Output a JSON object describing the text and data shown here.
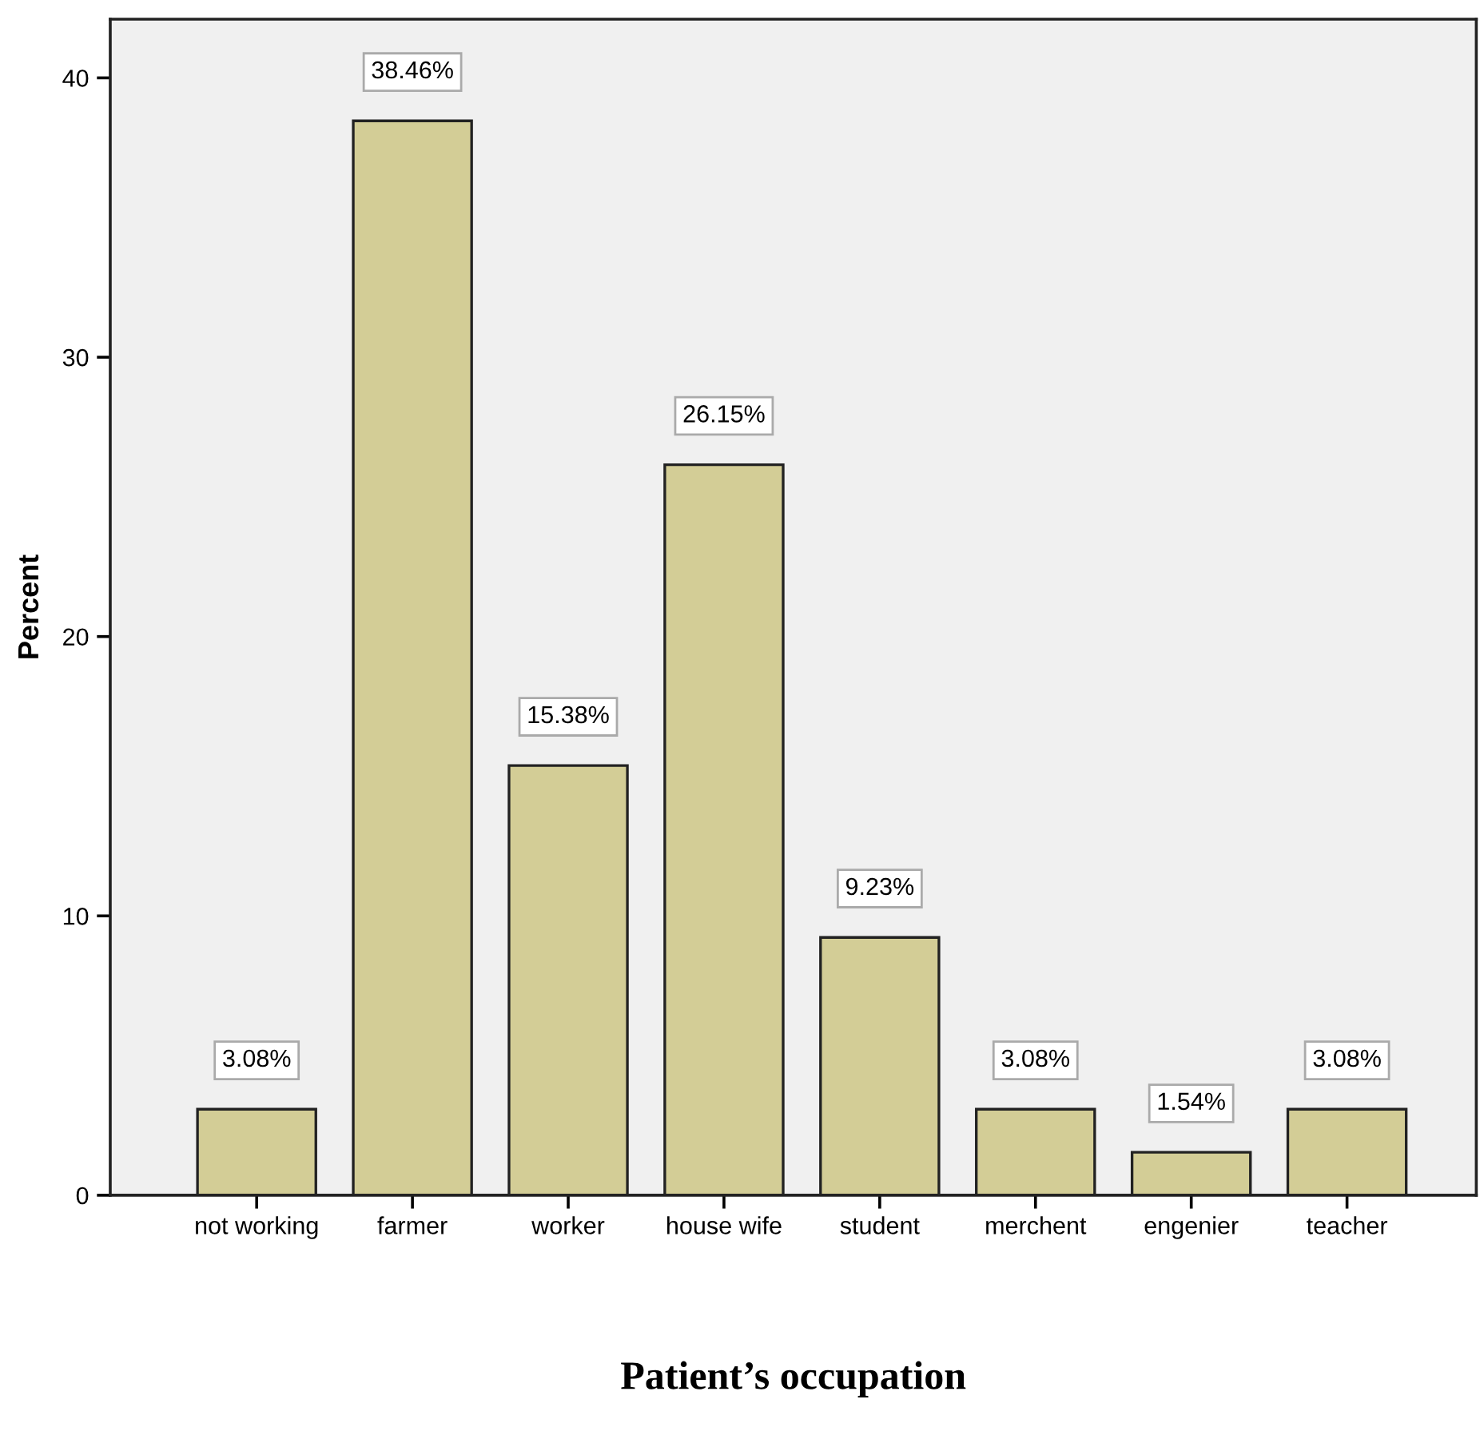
{
  "chart_data": {
    "type": "bar",
    "xlabel": "Patient’s occupation",
    "ylabel": "Percent",
    "categories": [
      "not working",
      "farmer",
      "worker",
      "house wife",
      "student",
      "merchent",
      "engenier",
      "teacher"
    ],
    "values": [
      3.08,
      38.46,
      15.38,
      26.15,
      9.23,
      3.08,
      1.54,
      3.08
    ],
    "value_labels": [
      "3.08%",
      "38.46%",
      "15.38%",
      "26.15%",
      "9.23%",
      "3.08%",
      "1.54%",
      "3.08%"
    ],
    "color": "#d3cd96",
    "ylim": [
      0,
      42.1
    ],
    "yticks": [
      0,
      10,
      20,
      30,
      40
    ],
    "grid": false
  }
}
